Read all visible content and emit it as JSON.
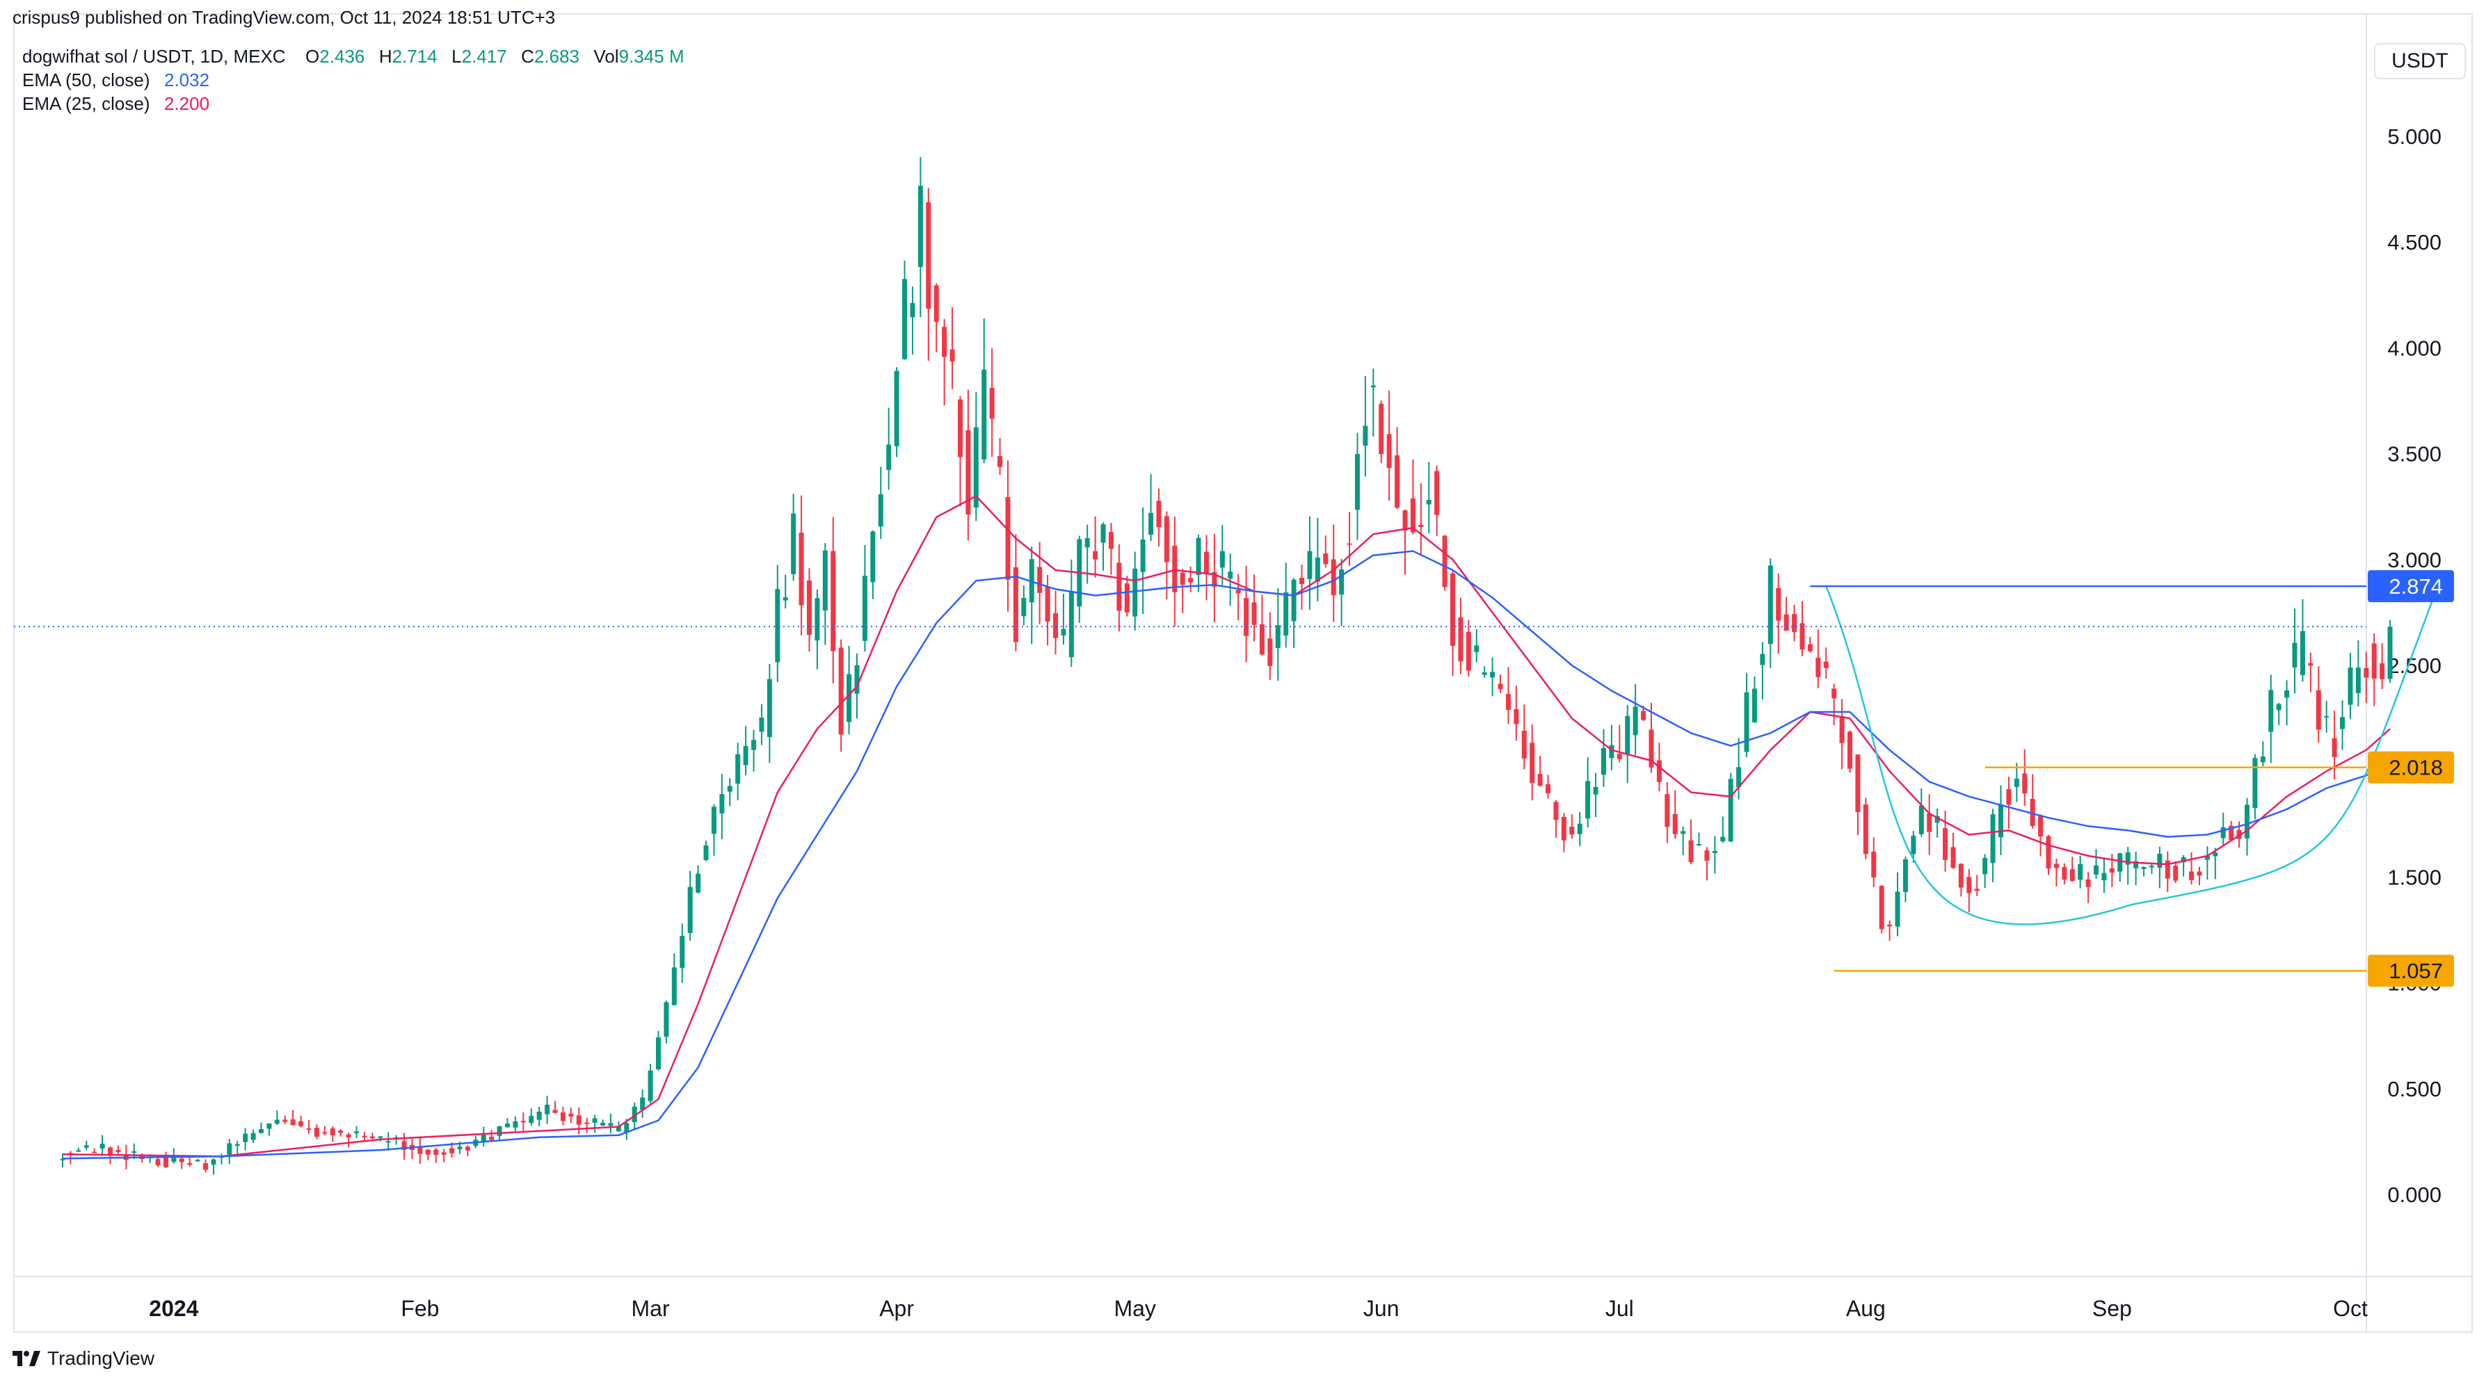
{
  "header": {
    "published": "crispus9 published on TradingView.com, Oct 11, 2024 18:51 UTC+3",
    "symbol": "dogwifhat sol / USDT, 1D, MEXC",
    "ohlc": {
      "o_label": "O",
      "o": "2.436",
      "h_label": "H",
      "h": "2.714",
      "l_label": "L",
      "l": "2.417",
      "c_label": "C",
      "c": "2.683",
      "vol_label": "Vol",
      "vol": "9.345 M"
    },
    "ema50": {
      "label": "EMA (50, close)",
      "value": "2.032"
    },
    "ema25": {
      "label": "EMA (25, close)",
      "value": "2.200"
    }
  },
  "currency": "USDT",
  "footer": {
    "brand": "TradingView",
    "logo_icon": "tradingview-logo-icon"
  },
  "colors": {
    "up": "#089981",
    "down": "#f23645",
    "ema50": "#2962ff",
    "ema25": "#e91e63",
    "level": "#f7a600",
    "resistance": "#2962ff",
    "cup": "#26c6da",
    "grid": "#e0e3eb"
  },
  "chart_data": {
    "type": "candlestick",
    "ylim": [
      -0.15,
      5.15
    ],
    "y_ticks": [
      "0.000",
      "0.500",
      "1.000",
      "1.500",
      "2.000",
      "2.500",
      "3.000",
      "3.500",
      "4.000",
      "4.500",
      "5.000"
    ],
    "x_ticks": [
      {
        "label": "2024",
        "day": 14,
        "bold": true
      },
      {
        "label": "Feb",
        "day": 45
      },
      {
        "label": "Mar",
        "day": 74
      },
      {
        "label": "Apr",
        "day": 105
      },
      {
        "label": "May",
        "day": 135
      },
      {
        "label": "Jun",
        "day": 166
      },
      {
        "label": "Jul",
        "day": 196
      },
      {
        "label": "Aug",
        "day": 227
      },
      {
        "label": "Sep",
        "day": 258
      },
      {
        "label": "Oct",
        "day": 288
      }
    ],
    "last_price": 2.683,
    "levels": [
      {
        "label": "2.874",
        "value": 2.874,
        "kind": "resistance",
        "from_day": 220
      },
      {
        "label": "2.018",
        "value": 2.018,
        "kind": "support",
        "from_day": 242
      },
      {
        "label": "1.057",
        "value": 1.057,
        "kind": "support",
        "from_day": 223
      }
    ],
    "cup_pattern": {
      "from_day": 222,
      "to_day": 299,
      "rim": 2.874,
      "bottom": 1.37
    },
    "anchors": [
      [
        0,
        0.2
      ],
      [
        5,
        0.22
      ],
      [
        12,
        0.16
      ],
      [
        18,
        0.14
      ],
      [
        22,
        0.24
      ],
      [
        27,
        0.36
      ],
      [
        32,
        0.3
      ],
      [
        38,
        0.28
      ],
      [
        44,
        0.22
      ],
      [
        49,
        0.2
      ],
      [
        56,
        0.32
      ],
      [
        61,
        0.4
      ],
      [
        67,
        0.33
      ],
      [
        70,
        0.3
      ],
      [
        73,
        0.45
      ],
      [
        76,
        0.9
      ],
      [
        79,
        1.45
      ],
      [
        82,
        1.8
      ],
      [
        85,
        2.05
      ],
      [
        88,
        2.2
      ],
      [
        90,
        2.75
      ],
      [
        92,
        3.15
      ],
      [
        94,
        2.6
      ],
      [
        96,
        3.0
      ],
      [
        98,
        2.2
      ],
      [
        100,
        2.6
      ],
      [
        102,
        3.1
      ],
      [
        104,
        3.6
      ],
      [
        106,
        4.2
      ],
      [
        108,
        4.6
      ],
      [
        110,
        4.1
      ],
      [
        112,
        3.8
      ],
      [
        114,
        3.3
      ],
      [
        116,
        3.75
      ],
      [
        118,
        3.3
      ],
      [
        120,
        2.7
      ],
      [
        122,
        3.0
      ],
      [
        124,
        2.7
      ],
      [
        126,
        2.6
      ],
      [
        128,
        3.0
      ],
      [
        131,
        3.1
      ],
      [
        134,
        2.7
      ],
      [
        137,
        3.3
      ],
      [
        140,
        2.95
      ],
      [
        143,
        3.0
      ],
      [
        146,
        2.95
      ],
      [
        149,
        2.75
      ],
      [
        152,
        2.55
      ],
      [
        155,
        2.85
      ],
      [
        158,
        3.0
      ],
      [
        160,
        2.9
      ],
      [
        162,
        3.2
      ],
      [
        164,
        3.78
      ],
      [
        166,
        3.55
      ],
      [
        168,
        3.3
      ],
      [
        170,
        3.2
      ],
      [
        172,
        3.35
      ],
      [
        175,
        2.7
      ],
      [
        178,
        2.5
      ],
      [
        181,
        2.4
      ],
      [
        184,
        2.1
      ],
      [
        187,
        1.85
      ],
      [
        190,
        1.7
      ],
      [
        193,
        2.0
      ],
      [
        196,
        2.1
      ],
      [
        198,
        2.3
      ],
      [
        200,
        2.05
      ],
      [
        202,
        1.8
      ],
      [
        204,
        1.65
      ],
      [
        207,
        1.6
      ],
      [
        209,
        1.7
      ],
      [
        211,
        2.1
      ],
      [
        213,
        2.45
      ],
      [
        215,
        2.85
      ],
      [
        217,
        2.75
      ],
      [
        219,
        2.65
      ],
      [
        221,
        2.5
      ],
      [
        223,
        2.3
      ],
      [
        225,
        2.1
      ],
      [
        227,
        1.65
      ],
      [
        229,
        1.3
      ],
      [
        230,
        1.25
      ],
      [
        232,
        1.6
      ],
      [
        234,
        1.8
      ],
      [
        236,
        1.75
      ],
      [
        238,
        1.55
      ],
      [
        240,
        1.45
      ],
      [
        242,
        1.55
      ],
      [
        244,
        1.9
      ],
      [
        246,
        1.95
      ],
      [
        248,
        1.8
      ],
      [
        250,
        1.58
      ],
      [
        253,
        1.52
      ],
      [
        256,
        1.5
      ],
      [
        259,
        1.55
      ],
      [
        262,
        1.58
      ],
      [
        265,
        1.55
      ],
      [
        268,
        1.52
      ],
      [
        270,
        1.58
      ],
      [
        272,
        1.75
      ],
      [
        274,
        1.72
      ],
      [
        276,
        2.0
      ],
      [
        278,
        2.3
      ],
      [
        280,
        2.45
      ],
      [
        282,
        2.55
      ],
      [
        284,
        2.25
      ],
      [
        286,
        2.15
      ],
      [
        288,
        2.4
      ],
      [
        290,
        2.55
      ],
      [
        292,
        2.4
      ],
      [
        293,
        2.683
      ]
    ],
    "ema25_points": [
      [
        0,
        0.19
      ],
      [
        20,
        0.18
      ],
      [
        40,
        0.26
      ],
      [
        60,
        0.3
      ],
      [
        70,
        0.32
      ],
      [
        75,
        0.45
      ],
      [
        80,
        0.9
      ],
      [
        85,
        1.4
      ],
      [
        90,
        1.9
      ],
      [
        95,
        2.2
      ],
      [
        100,
        2.4
      ],
      [
        105,
        2.85
      ],
      [
        110,
        3.2
      ],
      [
        115,
        3.3
      ],
      [
        120,
        3.1
      ],
      [
        125,
        2.95
      ],
      [
        130,
        2.93
      ],
      [
        135,
        2.9
      ],
      [
        140,
        2.95
      ],
      [
        145,
        2.93
      ],
      [
        150,
        2.85
      ],
      [
        155,
        2.83
      ],
      [
        160,
        2.95
      ],
      [
        165,
        3.12
      ],
      [
        170,
        3.15
      ],
      [
        175,
        3.0
      ],
      [
        180,
        2.75
      ],
      [
        185,
        2.5
      ],
      [
        190,
        2.25
      ],
      [
        195,
        2.1
      ],
      [
        200,
        2.05
      ],
      [
        205,
        1.9
      ],
      [
        210,
        1.88
      ],
      [
        215,
        2.1
      ],
      [
        220,
        2.28
      ],
      [
        225,
        2.25
      ],
      [
        230,
        2.0
      ],
      [
        235,
        1.8
      ],
      [
        240,
        1.7
      ],
      [
        245,
        1.72
      ],
      [
        250,
        1.65
      ],
      [
        255,
        1.6
      ],
      [
        260,
        1.57
      ],
      [
        265,
        1.56
      ],
      [
        270,
        1.6
      ],
      [
        275,
        1.72
      ],
      [
        280,
        1.88
      ],
      [
        285,
        2.0
      ],
      [
        290,
        2.1
      ],
      [
        293,
        2.2
      ]
    ],
    "ema50_points": [
      [
        0,
        0.17
      ],
      [
        20,
        0.18
      ],
      [
        40,
        0.21
      ],
      [
        60,
        0.27
      ],
      [
        70,
        0.28
      ],
      [
        75,
        0.35
      ],
      [
        80,
        0.6
      ],
      [
        85,
        1.0
      ],
      [
        90,
        1.4
      ],
      [
        95,
        1.7
      ],
      [
        100,
        2.0
      ],
      [
        105,
        2.4
      ],
      [
        110,
        2.7
      ],
      [
        115,
        2.9
      ],
      [
        120,
        2.92
      ],
      [
        125,
        2.86
      ],
      [
        130,
        2.83
      ],
      [
        135,
        2.85
      ],
      [
        140,
        2.87
      ],
      [
        145,
        2.88
      ],
      [
        150,
        2.85
      ],
      [
        155,
        2.83
      ],
      [
        160,
        2.9
      ],
      [
        165,
        3.02
      ],
      [
        170,
        3.04
      ],
      [
        175,
        2.95
      ],
      [
        180,
        2.82
      ],
      [
        185,
        2.66
      ],
      [
        190,
        2.5
      ],
      [
        195,
        2.38
      ],
      [
        200,
        2.28
      ],
      [
        205,
        2.18
      ],
      [
        210,
        2.12
      ],
      [
        215,
        2.18
      ],
      [
        220,
        2.28
      ],
      [
        225,
        2.28
      ],
      [
        230,
        2.1
      ],
      [
        235,
        1.95
      ],
      [
        240,
        1.88
      ],
      [
        245,
        1.83
      ],
      [
        250,
        1.78
      ],
      [
        255,
        1.74
      ],
      [
        260,
        1.72
      ],
      [
        265,
        1.69
      ],
      [
        270,
        1.7
      ],
      [
        275,
        1.75
      ],
      [
        280,
        1.82
      ],
      [
        285,
        1.92
      ],
      [
        290,
        1.98
      ],
      [
        293,
        2.032
      ]
    ]
  }
}
